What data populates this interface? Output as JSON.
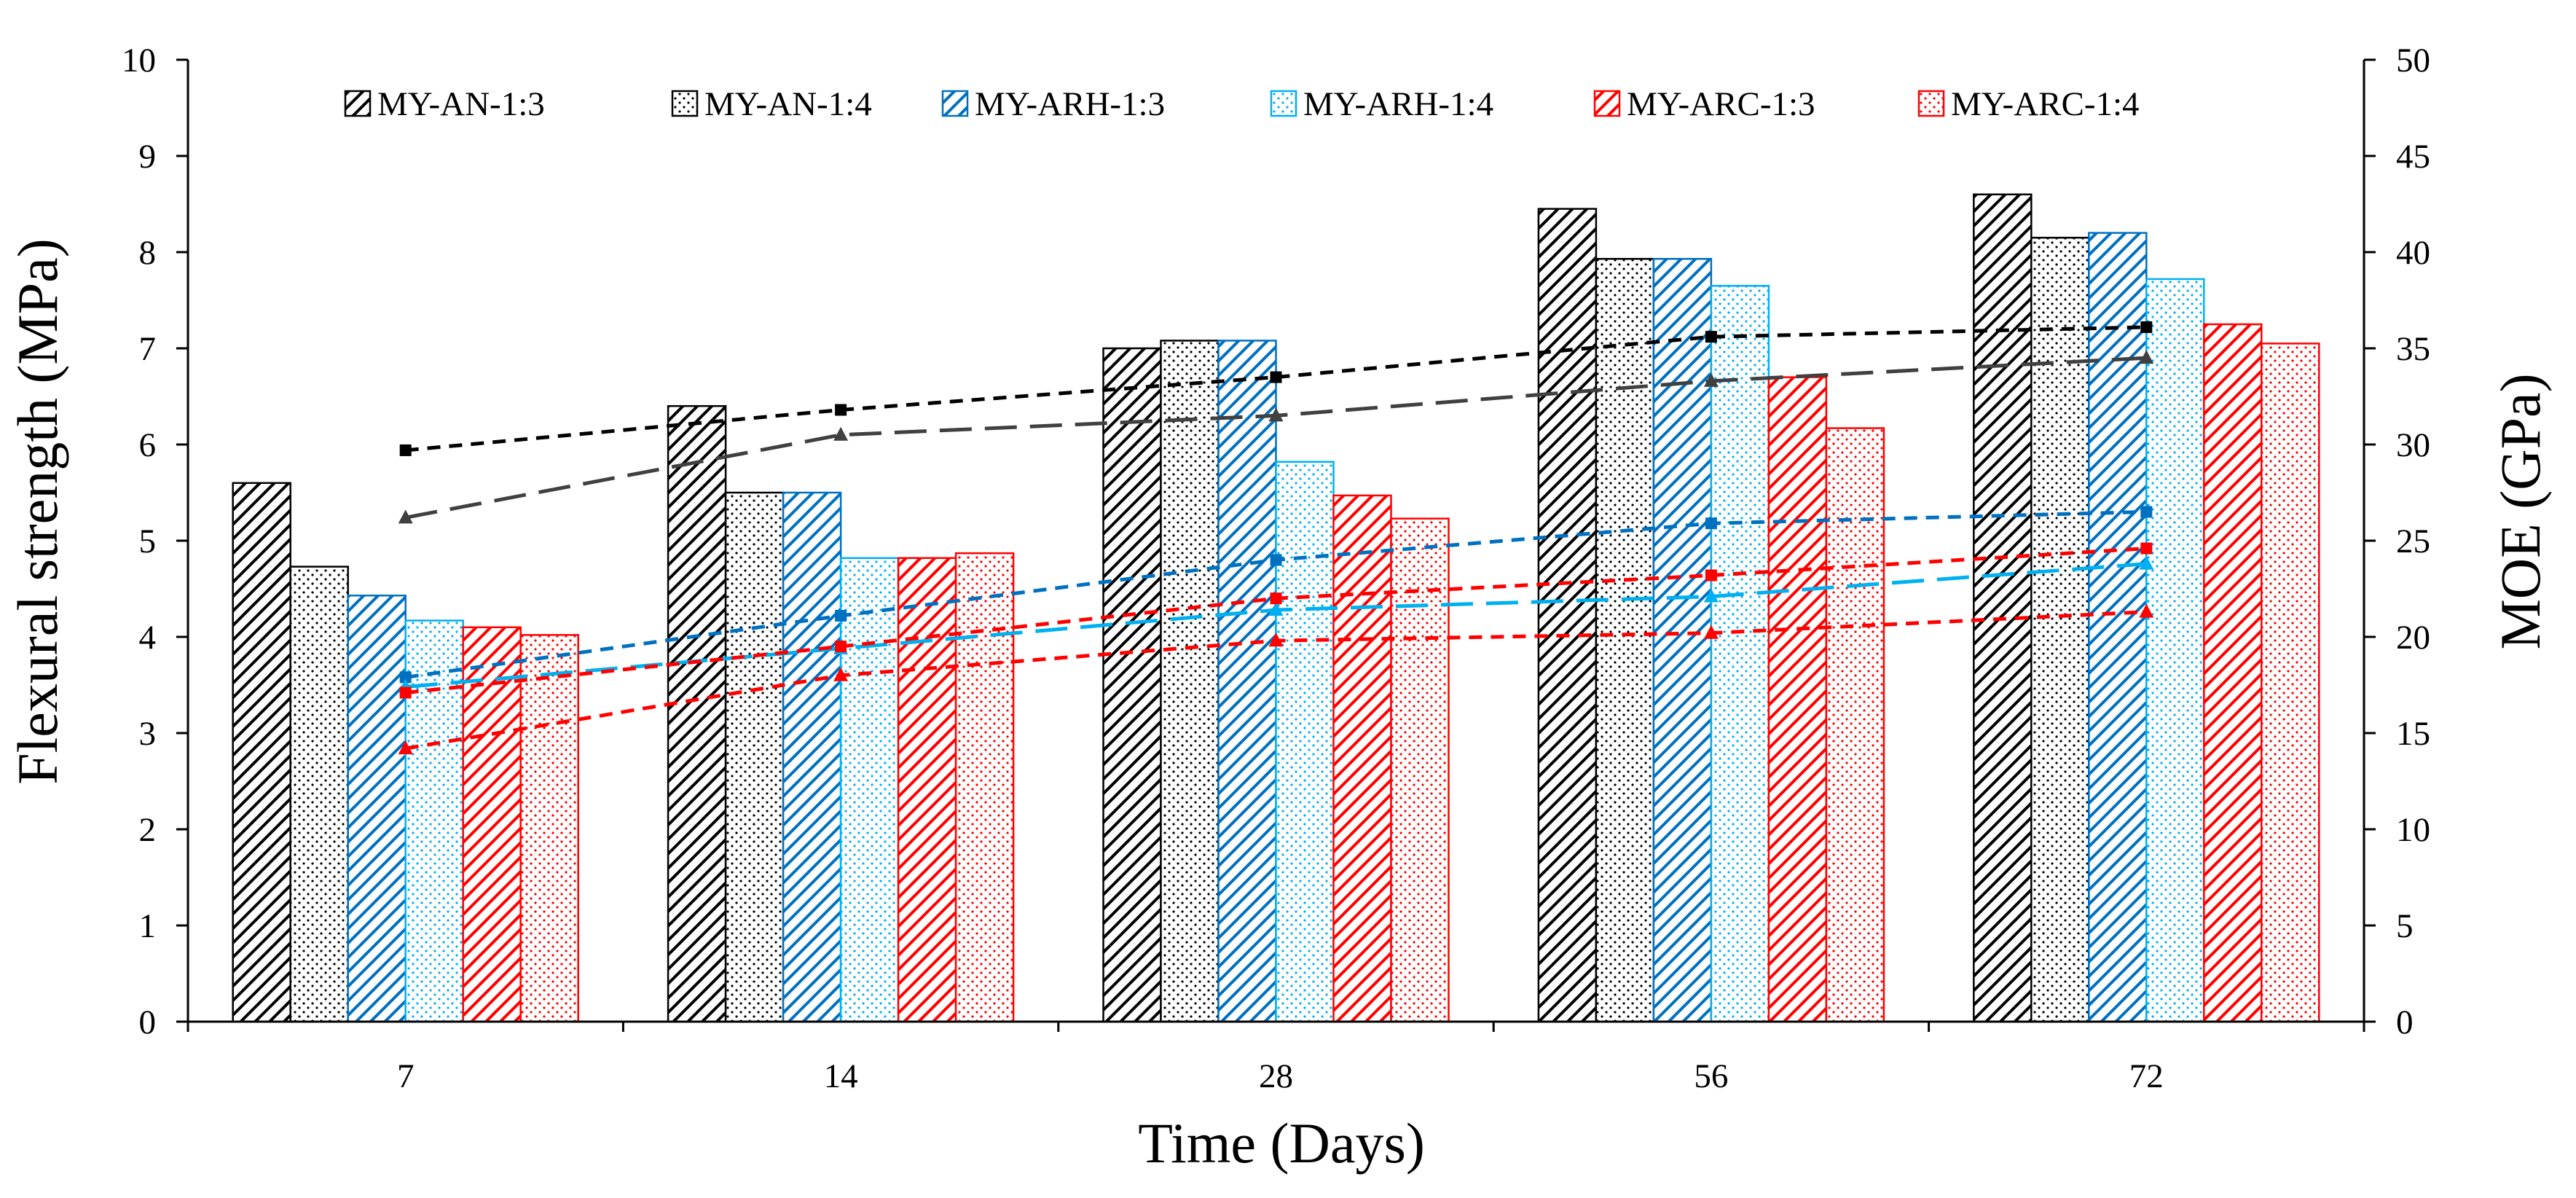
{
  "chart_data": {
    "type": "bar",
    "title": "",
    "xlabel": "Time (Days)",
    "ylabel": "Flexural strength (MPa)",
    "y2label": "MOE (GPa)",
    "categories": [
      "7",
      "14",
      "28",
      "56",
      "72"
    ],
    "ylim": [
      0,
      10
    ],
    "yticks": [
      0,
      1,
      2,
      3,
      4,
      5,
      6,
      7,
      8,
      9,
      10
    ],
    "y2lim": [
      0,
      50
    ],
    "y2ticks": [
      0,
      5,
      10,
      15,
      20,
      25,
      30,
      35,
      40,
      45,
      50
    ],
    "legend_position": "top",
    "series": [
      {
        "name": "MY-AN-1:3",
        "color": "#000000",
        "pattern": "hatch",
        "values": [
          5.6,
          6.4,
          7.0,
          8.45,
          8.6
        ]
      },
      {
        "name": "MY-AN-1:4",
        "color": "#000000",
        "pattern": "dots",
        "values": [
          4.73,
          5.5,
          7.08,
          7.93,
          8.15
        ]
      },
      {
        "name": "MY-ARH-1:3",
        "color": "#0070C0",
        "pattern": "hatch",
        "values": [
          4.43,
          5.5,
          7.08,
          7.93,
          8.2
        ]
      },
      {
        "name": "MY-ARH-1:4",
        "color": "#00B0F0",
        "pattern": "dots",
        "values": [
          4.17,
          4.82,
          5.82,
          7.65,
          7.72
        ]
      },
      {
        "name": "MY-ARC-1:3",
        "color": "#FF0000",
        "pattern": "hatch",
        "values": [
          4.1,
          4.82,
          5.47,
          6.7,
          7.25
        ]
      },
      {
        "name": "MY-ARC-1:4",
        "color": "#FF0000",
        "pattern": "dots",
        "values": [
          4.02,
          4.87,
          5.23,
          6.17,
          7.05
        ]
      }
    ],
    "moe_series": [
      {
        "name": "MY-AN-1:3 MOE",
        "color": "#000000",
        "marker": "square",
        "dash": "short",
        "values": [
          29.7,
          31.8,
          33.5,
          35.6,
          36.1
        ]
      },
      {
        "name": "MY-AN-1:4 MOE",
        "color": "#404040",
        "marker": "triangle",
        "dash": "long",
        "values": [
          26.2,
          30.5,
          31.5,
          33.3,
          34.5
        ]
      },
      {
        "name": "MY-ARH-1:3 MOE",
        "color": "#0070C0",
        "marker": "square",
        "dash": "short",
        "values": [
          17.9,
          21.1,
          24.0,
          25.9,
          26.5
        ]
      },
      {
        "name": "MY-ARH-1:4 MOE",
        "color": "#00B0F0",
        "marker": "triangle",
        "dash": "long",
        "values": [
          17.4,
          19.4,
          21.4,
          22.1,
          23.8
        ]
      },
      {
        "name": "MY-ARC-1:3 MOE",
        "color": "#FF0000",
        "marker": "square",
        "dash": "short",
        "values": [
          17.1,
          19.5,
          22.0,
          23.2,
          24.6
        ]
      },
      {
        "name": "MY-ARC-1:4 MOE",
        "color": "#FF0000",
        "marker": "triangle",
        "dash": "short",
        "values": [
          14.2,
          18.0,
          19.8,
          20.2,
          21.3
        ]
      }
    ]
  }
}
